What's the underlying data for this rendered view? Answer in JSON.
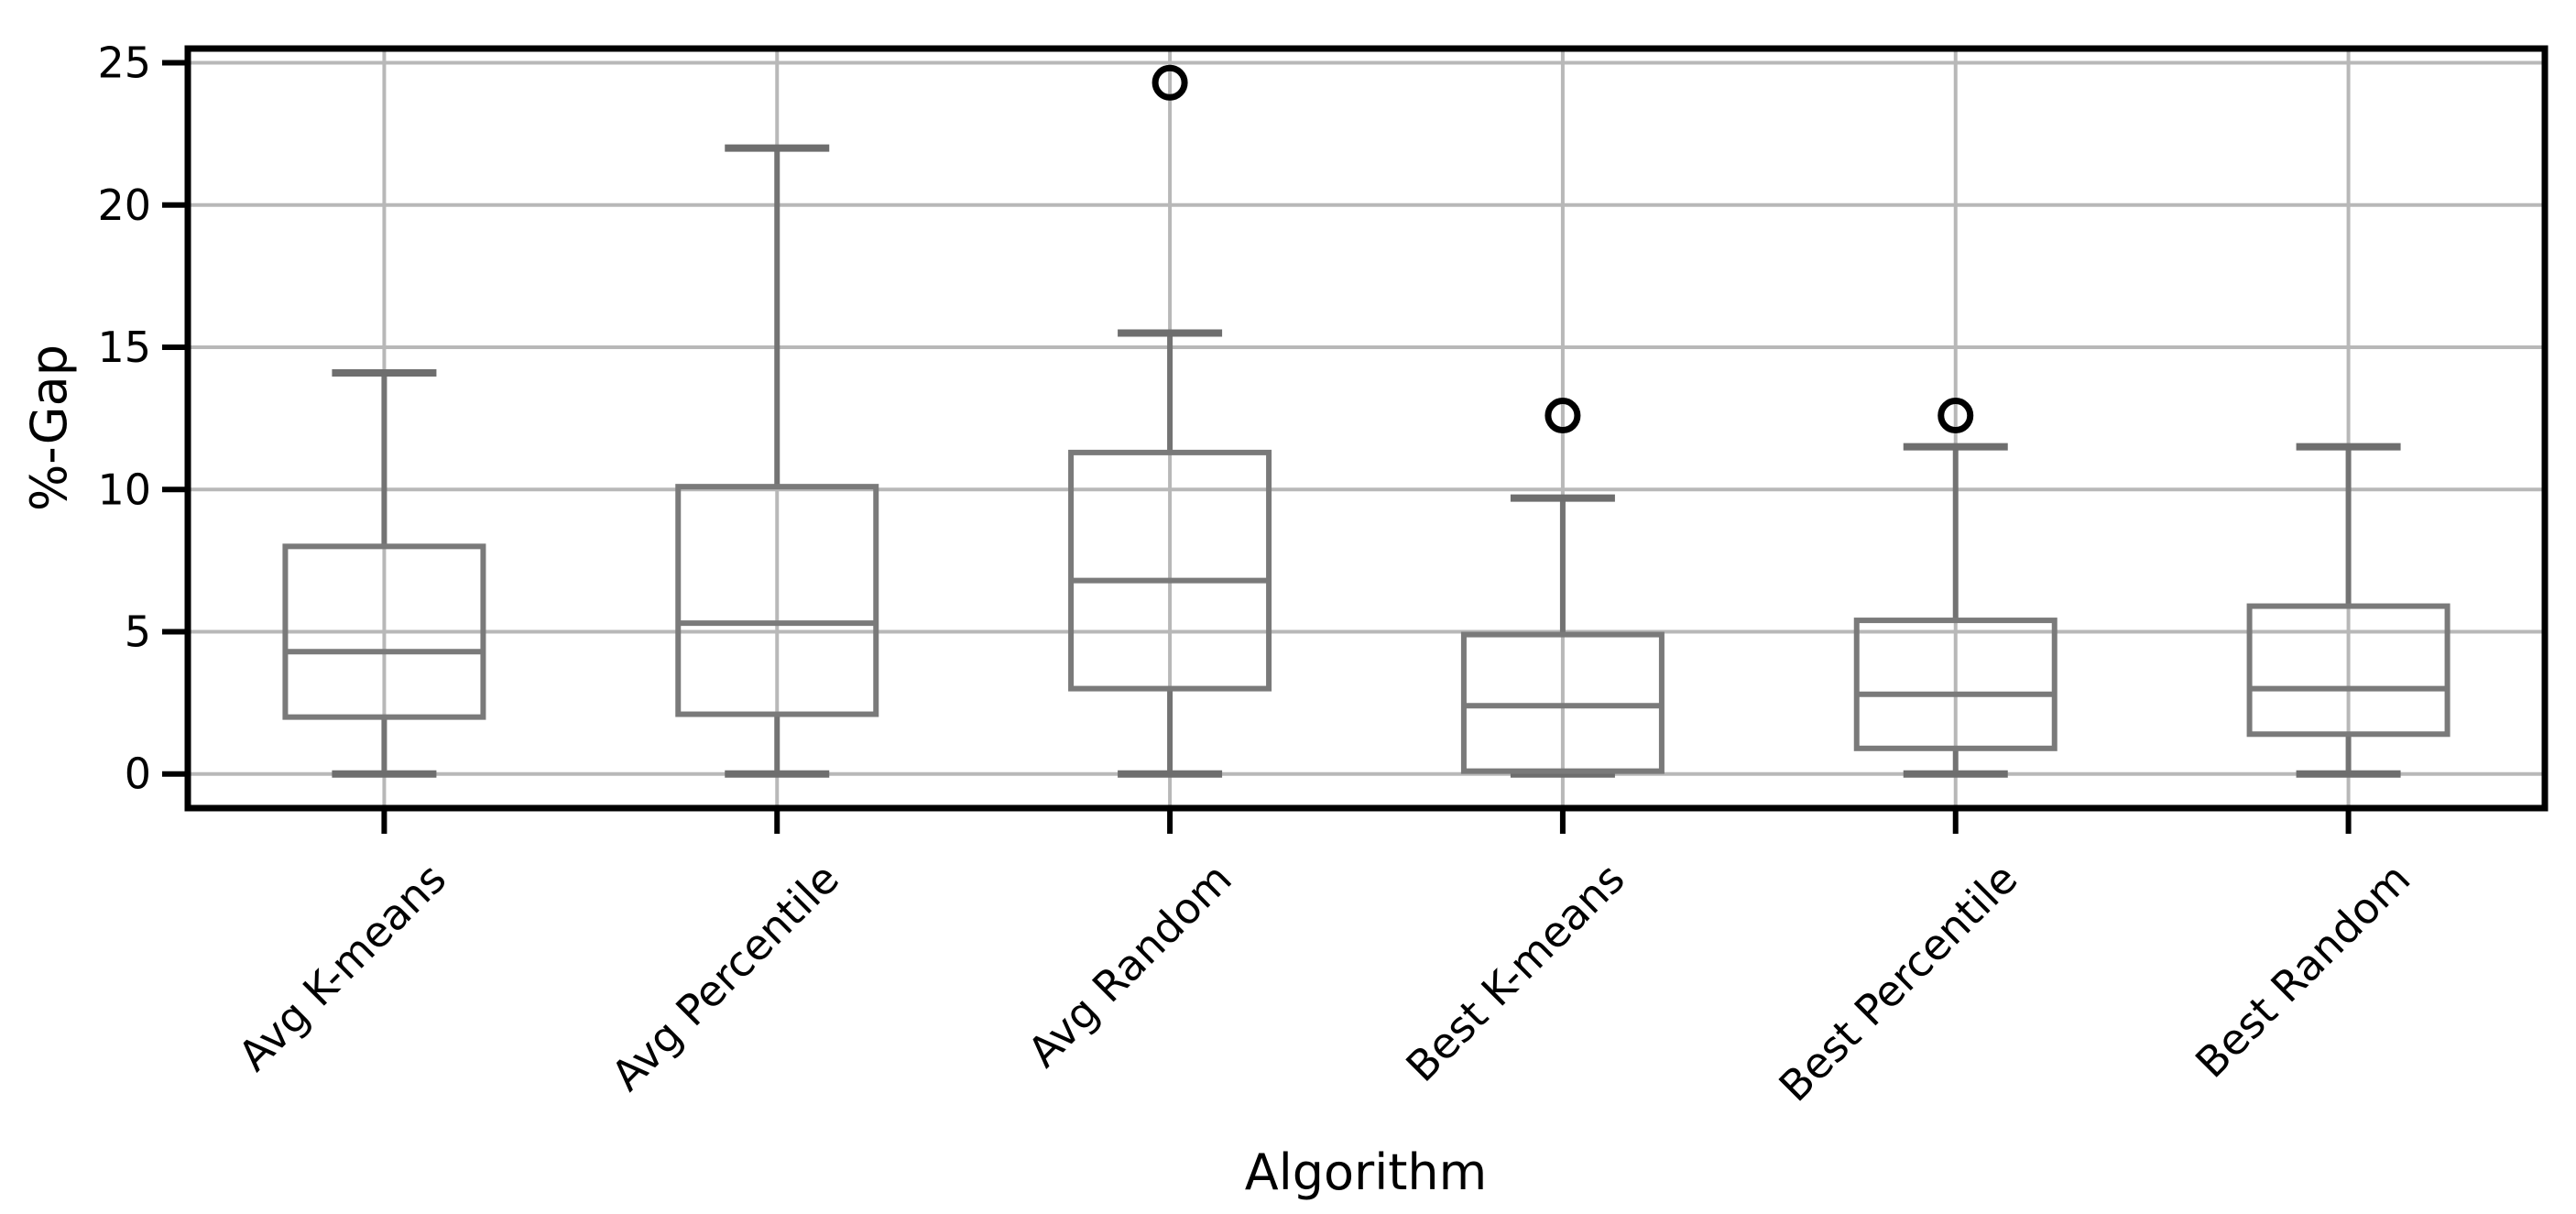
{
  "figure": {
    "background": "#ffffff"
  },
  "chart_data": {
    "type": "boxplot",
    "title": "",
    "xlabel": "Algorithm",
    "ylabel": "%-Gap",
    "categories": [
      "Avg K-means",
      "Avg Percentile",
      "Avg Random",
      "Best K-means",
      "Best Percentile",
      "Best Random"
    ],
    "boxes": [
      {
        "label": "Avg K-means",
        "whislo": 0.0,
        "q1": 2.0,
        "med": 4.3,
        "q3": 8.0,
        "whishi": 14.1,
        "fliers": []
      },
      {
        "label": "Avg Percentile",
        "whislo": 0.0,
        "q1": 2.1,
        "med": 5.3,
        "q3": 10.1,
        "whishi": 22.0,
        "fliers": []
      },
      {
        "label": "Avg Random",
        "whislo": 0.0,
        "q1": 3.0,
        "med": 6.8,
        "q3": 11.3,
        "whishi": 15.5,
        "fliers": [
          24.3
        ]
      },
      {
        "label": "Best K-means",
        "whislo": 0.0,
        "q1": 0.1,
        "med": 2.4,
        "q3": 4.9,
        "whishi": 9.7,
        "fliers": [
          12.6
        ]
      },
      {
        "label": "Best Percentile",
        "whislo": 0.0,
        "q1": 0.9,
        "med": 2.8,
        "q3": 5.4,
        "whishi": 11.5,
        "fliers": [
          12.6
        ]
      },
      {
        "label": "Best Random",
        "whislo": 0.0,
        "q1": 1.4,
        "med": 3.0,
        "q3": 5.9,
        "whishi": 11.5,
        "fliers": []
      }
    ],
    "yticks": [
      0,
      5,
      10,
      15,
      20,
      25
    ],
    "ylim": [
      -1.2,
      25.5
    ],
    "grid": {
      "x": true,
      "y": true
    },
    "legend": null,
    "colors": {
      "box": "#7a7a7a",
      "median": "#7a7a7a",
      "whisker": "#737373",
      "cap": "#6e6e6e",
      "grid": "#b8b8b8",
      "spine": "#000000",
      "flier": "#000000",
      "background": "#ffffff"
    }
  }
}
